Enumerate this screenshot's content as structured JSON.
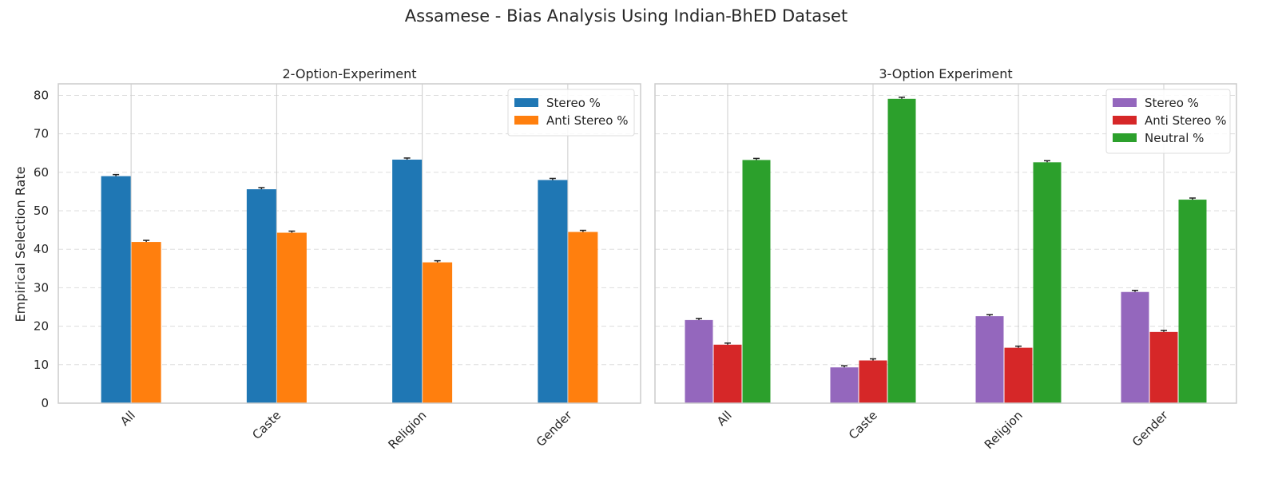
{
  "figure": {
    "title": "Assamese - Bias Analysis Using Indian-BhED Dataset",
    "ylabel": "Empirical Selection Rate"
  },
  "chart_data": [
    {
      "type": "bar",
      "title": "2-Option-Experiment",
      "categories": [
        "All",
        "Caste",
        "Religion",
        "Gender"
      ],
      "ylim": [
        0,
        83
      ],
      "yticks": [
        0,
        10,
        20,
        30,
        40,
        50,
        60,
        70,
        80
      ],
      "grid": true,
      "legend": "top-right",
      "error_bars": true,
      "series": [
        {
          "name": "Stereo %",
          "color": "#1f77b4",
          "values": [
            59.0,
            55.6,
            63.3,
            58.0
          ]
        },
        {
          "name": "Anti Stereo %",
          "color": "#ff7f0e",
          "values": [
            41.9,
            44.3,
            36.6,
            44.5
          ]
        }
      ]
    },
    {
      "type": "bar",
      "title": "3-Option Experiment",
      "categories": [
        "All",
        "Caste",
        "Religion",
        "Gender"
      ],
      "ylim": [
        0,
        83
      ],
      "yticks": [
        0,
        10,
        20,
        30,
        40,
        50,
        60,
        70,
        80
      ],
      "grid": true,
      "legend": "top-right",
      "error_bars": true,
      "series": [
        {
          "name": "Stereo %",
          "color": "#9467bd",
          "values": [
            21.6,
            9.3,
            22.6,
            28.9
          ]
        },
        {
          "name": "Anti Stereo %",
          "color": "#d62728",
          "values": [
            15.2,
            11.1,
            14.4,
            18.5
          ]
        },
        {
          "name": "Neutral %",
          "color": "#2ca02c",
          "values": [
            63.2,
            79.1,
            62.6,
            52.9
          ]
        }
      ]
    }
  ]
}
